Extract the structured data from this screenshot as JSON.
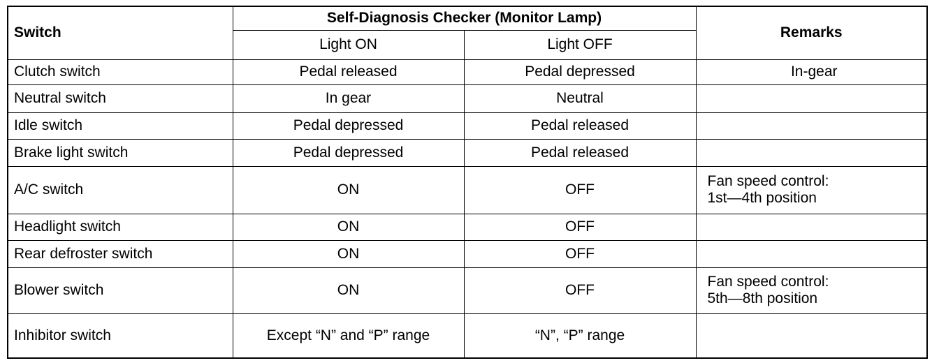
{
  "table": {
    "header": {
      "switch": "Switch",
      "checker": "Self-Diagnosis Checker (Monitor Lamp)",
      "remarks": "Remarks",
      "light_on": "Light ON",
      "light_off": "Light OFF"
    },
    "rows": [
      [
        "Clutch switch",
        "Pedal released",
        "Pedal depressed",
        "In-gear"
      ],
      [
        "Neutral switch",
        "In gear",
        "Neutral",
        null
      ],
      [
        "Idle switch",
        "Pedal depressed",
        "Pedal released",
        null
      ],
      [
        "Brake light switch",
        "Pedal depressed",
        "Pedal released",
        null
      ],
      [
        "A/C switch",
        "ON",
        "OFF",
        "Fan speed control:\n1st—4th position"
      ],
      [
        "Headlight switch",
        "ON",
        "OFF",
        null
      ],
      [
        "Rear defroster switch",
        "ON",
        "OFF",
        null
      ],
      [
        "Blower switch",
        "ON",
        "OFF",
        "Fan speed control:\n5th—8th position"
      ],
      [
        "Inhibitor switch",
        "Except “N” and “P” range",
        "“N”, “P” range",
        null
      ]
    ]
  }
}
